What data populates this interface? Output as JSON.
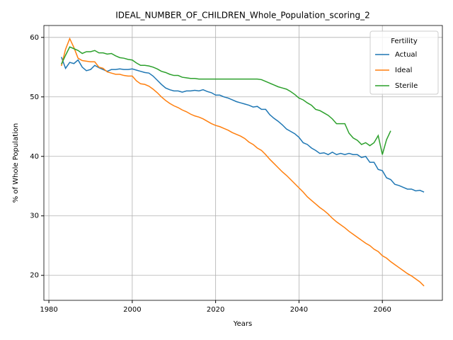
{
  "chart_data": {
    "type": "line",
    "title": "IDEAL_NUMBER_OF_CHILDREN_Whole_Population_scoring_2",
    "x_label": "Years",
    "y_label": "% of Whole Population",
    "x": [
      1983,
      1984,
      1985,
      1986,
      1987,
      1988,
      1989,
      1990,
      1991,
      1992,
      1993,
      1994,
      1995,
      1996,
      1997,
      1998,
      1999,
      2000,
      2001,
      2002,
      2003,
      2004,
      2005,
      2006,
      2007,
      2008,
      2009,
      2010,
      2011,
      2012,
      2013,
      2014,
      2015,
      2016,
      2017,
      2018,
      2019,
      2020,
      2021,
      2022,
      2023,
      2024,
      2025,
      2026,
      2027,
      2028,
      2029,
      2030,
      2031,
      2032,
      2033,
      2034,
      2035,
      2036,
      2037,
      2038,
      2039,
      2040,
      2041,
      2042,
      2043,
      2044,
      2045,
      2046,
      2047,
      2048,
      2049,
      2050,
      2051,
      2052,
      2053,
      2054,
      2055,
      2056,
      2057,
      2058,
      2059,
      2060,
      2061,
      2062,
      2063,
      2064,
      2065,
      2066,
      2067,
      2068,
      2069,
      2070
    ],
    "series": [
      {
        "name": "Actual",
        "color": "#1f77b4",
        "values": [
          56.7,
          54.8,
          55.8,
          55.6,
          56.2,
          55.0,
          54.4,
          54.6,
          55.3,
          54.9,
          54.6,
          54.3,
          54.6,
          54.6,
          54.7,
          54.6,
          54.6,
          54.7,
          54.5,
          54.3,
          54.1,
          54.0,
          53.5,
          52.8,
          52.1,
          51.5,
          51.2,
          51.0,
          51.0,
          50.8,
          51.0,
          51.0,
          51.1,
          51.0,
          51.2,
          50.9,
          50.7,
          50.3,
          50.3,
          50.0,
          49.8,
          49.5,
          49.2,
          49.0,
          48.8,
          48.6,
          48.3,
          48.4,
          47.9,
          47.9,
          47.0,
          46.4,
          45.9,
          45.3,
          44.6,
          44.2,
          43.8,
          43.2,
          42.3,
          42.0,
          41.4,
          41.0,
          40.5,
          40.6,
          40.3,
          40.7,
          40.3,
          40.5,
          40.3,
          40.5,
          40.3,
          40.3,
          39.8,
          40.0,
          39.0,
          39.0,
          37.8,
          37.6,
          36.4,
          36.1,
          35.3,
          35.1,
          34.8,
          34.5,
          34.5,
          34.2,
          34.3,
          34.0
        ]
      },
      {
        "name": "Ideal",
        "color": "#ff7f0e",
        "values": [
          55.2,
          58.0,
          59.8,
          58.3,
          56.5,
          56.1,
          56.0,
          55.9,
          55.9,
          55.0,
          54.8,
          54.2,
          54.0,
          53.8,
          53.8,
          53.6,
          53.5,
          53.5,
          52.7,
          52.2,
          52.1,
          51.8,
          51.3,
          50.7,
          50.0,
          49.4,
          48.9,
          48.5,
          48.2,
          47.8,
          47.5,
          47.1,
          46.8,
          46.6,
          46.3,
          45.9,
          45.5,
          45.2,
          45.0,
          44.7,
          44.4,
          44.0,
          43.7,
          43.4,
          43.0,
          42.4,
          42.0,
          41.4,
          41.0,
          40.3,
          39.5,
          38.8,
          38.1,
          37.4,
          36.8,
          36.1,
          35.4,
          34.7,
          34.0,
          33.2,
          32.6,
          32.0,
          31.4,
          30.9,
          30.3,
          29.6,
          29.0,
          28.5,
          28.0,
          27.4,
          26.9,
          26.4,
          25.9,
          25.4,
          25.0,
          24.4,
          24.0,
          23.3,
          22.9,
          22.3,
          21.8,
          21.3,
          20.8,
          20.3,
          19.9,
          19.4,
          18.9,
          18.2
        ]
      },
      {
        "name": "Sterile",
        "color": "#2ca02c",
        "values": [
          55.5,
          57.0,
          58.4,
          58.1,
          57.8,
          57.3,
          57.6,
          57.6,
          57.8,
          57.4,
          57.4,
          57.2,
          57.3,
          56.9,
          56.6,
          56.5,
          56.3,
          56.2,
          55.7,
          55.3,
          55.3,
          55.2,
          55.0,
          54.7,
          54.3,
          54.1,
          53.8,
          53.6,
          53.6,
          53.3,
          53.2,
          53.1,
          53.1,
          53.0,
          53.0,
          53.0,
          53.0,
          53.0,
          53.0,
          53.0,
          53.0,
          53.0,
          53.0,
          53.0,
          53.0,
          53.0,
          53.0,
          53.0,
          52.9,
          52.6,
          52.3,
          52.0,
          51.7,
          51.5,
          51.3,
          50.9,
          50.4,
          49.8,
          49.5,
          49.0,
          48.6,
          47.9,
          47.7,
          47.3,
          46.9,
          46.3,
          45.5,
          45.5,
          45.5,
          43.9,
          43.1,
          42.7,
          42.0,
          42.3,
          41.8,
          42.3,
          43.5,
          40.3,
          42.8,
          44.3,
          null,
          null,
          null,
          null,
          null,
          null,
          null,
          null
        ]
      }
    ],
    "xlim": [
      1978.8,
      2074.4
    ],
    "ylim": [
      15.8,
      62.0
    ],
    "xticks": [
      1980,
      2000,
      2020,
      2040,
      2060
    ],
    "yticks": [
      20,
      30,
      40,
      50,
      60
    ],
    "grid": true,
    "legend_title": "Fertility",
    "legend_position": "upper-right"
  }
}
